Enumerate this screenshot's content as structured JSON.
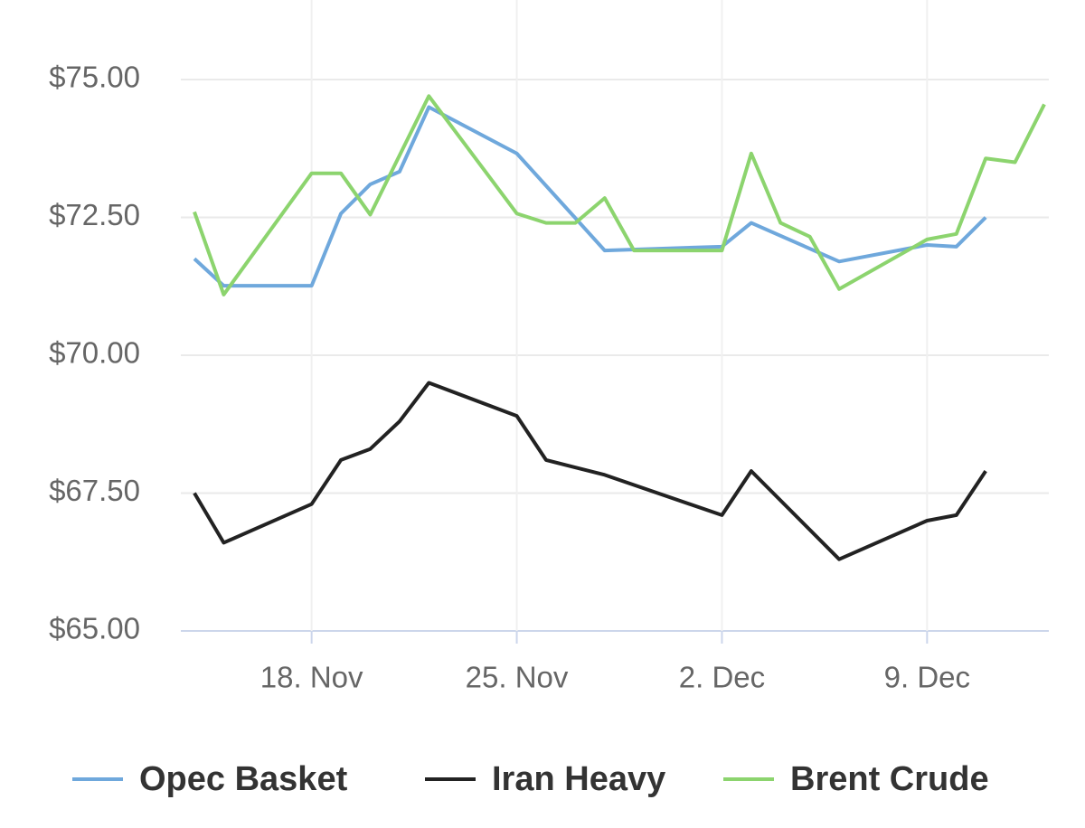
{
  "chart_data": {
    "type": "line",
    "xlim": [
      "14. Nov",
      "13. Dec"
    ],
    "xticks": [
      "18. Nov",
      "25. Nov",
      "2. Dec",
      "9. Dec"
    ],
    "ylim": [
      65,
      76
    ],
    "yticks": [
      {
        "value": 65,
        "label": "$65.00"
      },
      {
        "value": 67.5,
        "label": "$67.50"
      },
      {
        "value": 70,
        "label": "$70.00"
      },
      {
        "value": 72.5,
        "label": "$72.50"
      },
      {
        "value": 75,
        "label": "$75.00"
      }
    ],
    "grid": true,
    "series": [
      {
        "name": "Opec Basket",
        "color": "#6fa8dc",
        "x": [
          "14. Nov",
          "15. Nov",
          "18. Nov",
          "19. Nov",
          "20. Nov",
          "21. Nov",
          "22. Nov",
          "25. Nov",
          "28. Nov",
          "2. Dec",
          "3. Dec",
          "6. Dec",
          "9. Dec",
          "10. Dec",
          "11. Dec"
        ],
        "values": [
          71.75,
          71.26,
          71.26,
          72.57,
          73.1,
          73.33,
          74.5,
          73.66,
          71.9,
          71.97,
          72.4,
          71.7,
          72.0,
          71.97,
          72.5
        ]
      },
      {
        "name": "Iran Heavy",
        "color": "#222222",
        "x": [
          "14. Nov",
          "15. Nov",
          "18. Nov",
          "19. Nov",
          "20. Nov",
          "21. Nov",
          "22. Nov",
          "25. Nov",
          "26. Nov",
          "28. Nov",
          "2. Dec",
          "3. Dec",
          "6. Dec",
          "9. Dec",
          "10. Dec",
          "11. Dec"
        ],
        "values": [
          67.5,
          66.6,
          67.3,
          68.1,
          68.3,
          68.8,
          69.5,
          68.9,
          68.1,
          67.83,
          67.1,
          67.9,
          66.3,
          67.0,
          67.1,
          67.9
        ]
      },
      {
        "name": "Brent Crude",
        "color": "#8cd46e",
        "x": [
          "14. Nov",
          "15. Nov",
          "18. Nov",
          "19. Nov",
          "20. Nov",
          "22. Nov",
          "25. Nov",
          "26. Nov",
          "27. Nov",
          "28. Nov",
          "29. Nov",
          "2. Dec",
          "3. Dec",
          "4. Dec",
          "5. Dec",
          "6. Dec",
          "9. Dec",
          "10. Dec",
          "11. Dec",
          "12. Dec",
          "13. Dec"
        ],
        "values": [
          72.6,
          71.1,
          73.3,
          73.3,
          72.55,
          74.7,
          72.57,
          72.4,
          72.4,
          72.85,
          71.9,
          71.9,
          73.66,
          72.4,
          72.15,
          71.2,
          72.1,
          72.2,
          73.57,
          73.5,
          74.55
        ]
      }
    ]
  }
}
